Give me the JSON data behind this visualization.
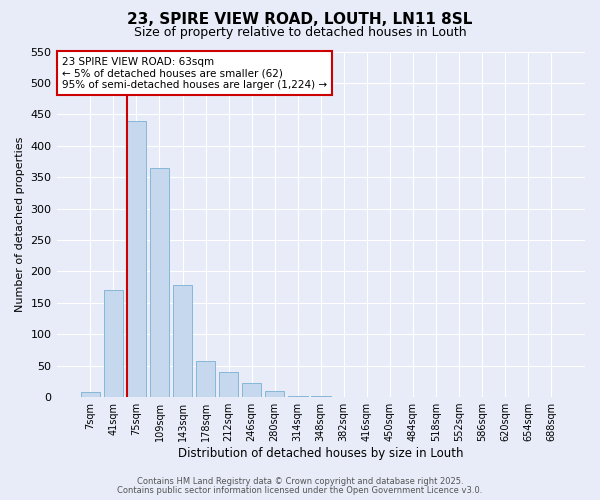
{
  "title": "23, SPIRE VIEW ROAD, LOUTH, LN11 8SL",
  "subtitle": "Size of property relative to detached houses in Louth",
  "xlabel": "Distribution of detached houses by size in Louth",
  "ylabel": "Number of detached properties",
  "bar_labels": [
    "7sqm",
    "41sqm",
    "75sqm",
    "109sqm",
    "143sqm",
    "178sqm",
    "212sqm",
    "246sqm",
    "280sqm",
    "314sqm",
    "348sqm",
    "382sqm",
    "416sqm",
    "450sqm",
    "484sqm",
    "518sqm",
    "552sqm",
    "586sqm",
    "620sqm",
    "654sqm",
    "688sqm"
  ],
  "bar_values": [
    8,
    170,
    440,
    365,
    178,
    57,
    40,
    22,
    10,
    2,
    1,
    0,
    0,
    0,
    0,
    0,
    0,
    0,
    0,
    0,
    0
  ],
  "bar_color": "#c5d8ed",
  "bar_edge_color": "#7aafd4",
  "ylim": [
    0,
    550
  ],
  "yticks": [
    0,
    50,
    100,
    150,
    200,
    250,
    300,
    350,
    400,
    450,
    500,
    550
  ],
  "annotation_title": "23 SPIRE VIEW ROAD: 63sqm",
  "annotation_line1": "← 5% of detached houses are smaller (62)",
  "annotation_line2": "95% of semi-detached houses are larger (1,224) →",
  "annotation_box_color": "#ffffff",
  "annotation_box_edge_color": "#cc0000",
  "vline_color": "#cc0000",
  "vline_x_index": 2,
  "bg_color": "#e8ecf8",
  "grid_color": "#ffffff",
  "footer1": "Contains HM Land Registry data © Crown copyright and database right 2025.",
  "footer2": "Contains public sector information licensed under the Open Government Licence v3.0."
}
